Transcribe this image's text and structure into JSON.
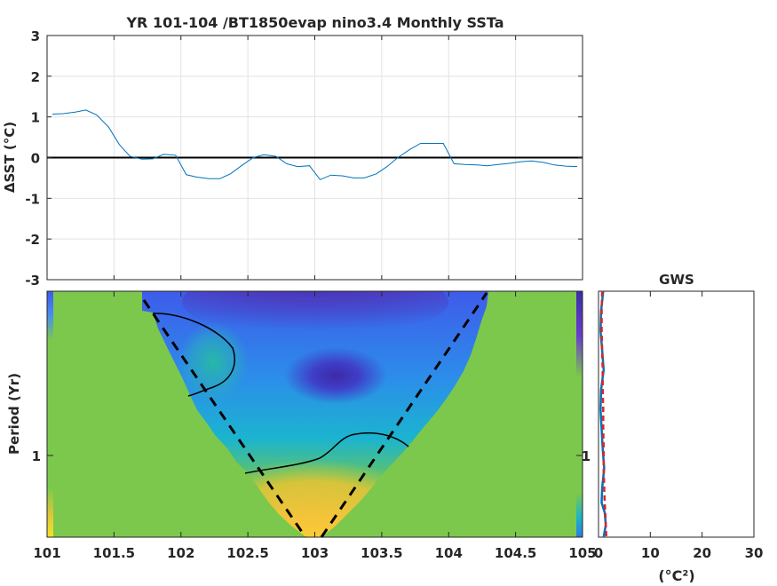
{
  "title": "YR 101-104 /BT1850evap nino3.4 Monthly SSTa",
  "chart_data": [
    {
      "type": "line",
      "title": "YR 101-104 /BT1850evap nino3.4 Monthly SSTa",
      "ylabel": "ΔSST (°C)",
      "xlabel": "",
      "xlim": [
        101,
        105
      ],
      "ylim": [
        -3,
        3
      ],
      "x_ticks": [
        101.5,
        102,
        102.5,
        103,
        103.5,
        104,
        104.5
      ],
      "y_ticks": [
        "3",
        "2",
        "1",
        "0",
        "-1",
        "-2",
        "-3"
      ],
      "grid": true,
      "zero_line": true,
      "line_color": "#0072BD",
      "series": [
        {
          "x": [
            101.04,
            101.12,
            101.21,
            101.29,
            101.37,
            101.46,
            101.54,
            101.62,
            101.71,
            101.79,
            101.87,
            101.96,
            102.04,
            102.12,
            102.21,
            102.29,
            102.37,
            102.46,
            102.54,
            102.62,
            102.71,
            102.79,
            102.87,
            102.96,
            103.04,
            103.12,
            103.21,
            103.29,
            103.37,
            103.46,
            103.54,
            103.62,
            103.71,
            103.79,
            103.87,
            103.96,
            104.04,
            104.12,
            104.21,
            104.29,
            104.37,
            104.46,
            104.54,
            104.62,
            104.71,
            104.79,
            104.87,
            104.96
          ],
          "values": [
            1.07,
            1.08,
            1.12,
            1.17,
            1.05,
            0.75,
            0.32,
            0.03,
            -0.04,
            -0.03,
            0.08,
            0.06,
            -0.42,
            -0.48,
            -0.52,
            -0.52,
            -0.4,
            -0.18,
            0.0,
            0.07,
            0.03,
            -0.15,
            -0.22,
            -0.2,
            -0.54,
            -0.43,
            -0.45,
            -0.5,
            -0.5,
            -0.4,
            -0.22,
            0.0,
            0.2,
            0.35,
            0.35,
            0.35,
            -0.15,
            -0.17,
            -0.18,
            -0.2,
            -0.17,
            -0.14,
            -0.1,
            -0.08,
            -0.12,
            -0.18,
            -0.21,
            -0.22
          ]
        }
      ]
    },
    {
      "type": "heatmap",
      "ylabel": "Period (Yr)",
      "xlabel": "",
      "xlim": [
        101,
        105
      ],
      "x_ticks": [
        "101",
        "101.5",
        "102",
        "102.5",
        "103",
        "103.5",
        "104",
        "104.5",
        "105"
      ],
      "y_ticks": [
        "1"
      ],
      "colormap": "parula",
      "cone_of_influence": "dashed black V from (101.7, top) to (103, bottom) to (104.3, top)",
      "contours": "solid black significance contours"
    },
    {
      "type": "line",
      "title": "GWS",
      "xlabel": "(°C²)",
      "xlim": [
        0,
        30
      ],
      "x_ticks": [
        "0",
        "10",
        "20",
        "30"
      ],
      "right_axis_tick": "1",
      "series": [
        {
          "color": "#0072BD",
          "x": [
            0.9,
            0.5,
            0.4,
            0.7,
            1.0,
            0.5,
            0.4,
            0.6,
            0.8,
            1.1,
            0.7,
            0.6,
            1.2,
            1.4,
            1.0
          ],
          "y_frac": [
            0.0,
            0.08,
            0.16,
            0.24,
            0.32,
            0.4,
            0.48,
            0.56,
            0.64,
            0.72,
            0.8,
            0.86,
            0.9,
            0.95,
            1.0
          ]
        },
        {
          "color": "#D62728",
          "x": [
            0.7,
            0.6,
            0.6,
            0.7,
            0.8,
            0.8,
            0.9,
            0.9,
            1.0,
            1.0,
            1.1,
            1.2,
            1.3,
            1.4,
            1.5
          ],
          "y_frac": [
            0.0,
            0.08,
            0.16,
            0.24,
            0.32,
            0.4,
            0.48,
            0.56,
            0.64,
            0.72,
            0.8,
            0.86,
            0.9,
            0.95,
            1.0
          ],
          "dashed": true
        }
      ]
    }
  ]
}
